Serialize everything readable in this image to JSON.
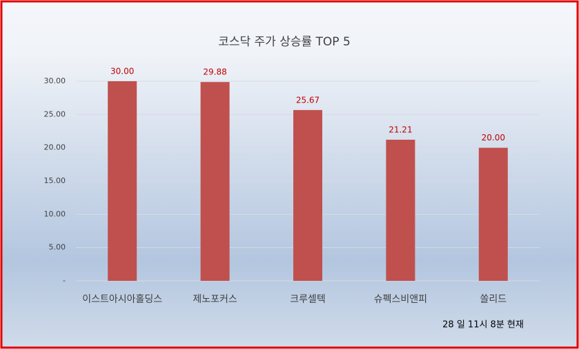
{
  "chart_data": {
    "type": "bar",
    "title": "코스닥 주가 상승률 TOP 5",
    "categories": [
      "이스트아시아홀딩스",
      "제노포커스",
      "크루셀텍",
      "슈펙스비앤피",
      "쏠리드"
    ],
    "values": [
      30,
      29.88,
      25.67,
      21.21,
      20
    ],
    "value_labels": [
      "30.00",
      "29.88",
      "25.67",
      "21.21",
      "20.00"
    ],
    "color": "#c0504d",
    "ylim": [
      0,
      30
    ],
    "yticks": [
      {
        "value": 0,
        "label": "-"
      },
      {
        "value": 5,
        "label": "5.00"
      },
      {
        "value": 10,
        "label": "10.00"
      },
      {
        "value": 15,
        "label": "15.00"
      },
      {
        "value": 20,
        "label": "20.00"
      },
      {
        "value": 25,
        "label": "25.00"
      },
      {
        "value": 30,
        "label": "30.00"
      }
    ],
    "grid": true,
    "annotation": "28 일 11시  8분 현재"
  }
}
